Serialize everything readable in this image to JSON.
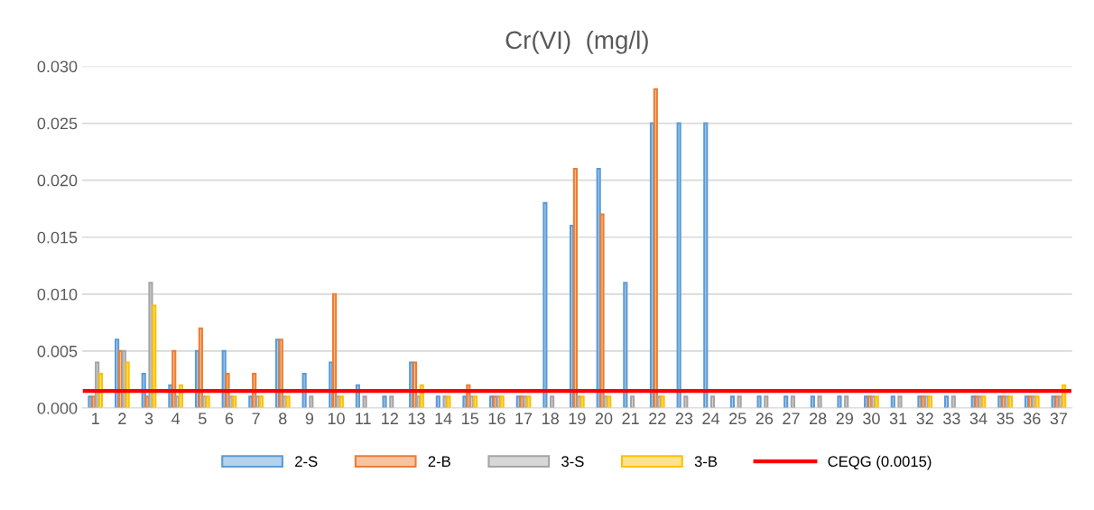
{
  "chart_data": {
    "type": "bar",
    "title": "Cr(VI)  (mg/l)",
    "categories": [
      "1",
      "2",
      "3",
      "4",
      "5",
      "6",
      "7",
      "8",
      "9",
      "10",
      "11",
      "12",
      "13",
      "14",
      "15",
      "16",
      "17",
      "18",
      "19",
      "20",
      "21",
      "22",
      "23",
      "24",
      "25",
      "26",
      "27",
      "28",
      "29",
      "30",
      "31",
      "32",
      "33",
      "34",
      "35",
      "36",
      "37"
    ],
    "series": [
      {
        "name": "2-S",
        "color": "#5b9bd5",
        "values": [
          0.001,
          0.006,
          0.003,
          0.002,
          0.005,
          0.005,
          0.001,
          0.006,
          0.003,
          0.004,
          0.002,
          0.001,
          0.004,
          0.001,
          0.001,
          0.001,
          0.001,
          0.018,
          0.016,
          0.021,
          0.011,
          0.025,
          0.025,
          0.025,
          0.001,
          0.001,
          0.001,
          0.001,
          0.001,
          0.001,
          0.001,
          0.001,
          0.001,
          0.001,
          0.001,
          0.001,
          0.001
        ]
      },
      {
        "name": "2-B",
        "color": "#ed7d31",
        "values": [
          0.001,
          0.005,
          0.001,
          0.005,
          0.007,
          0.003,
          0.003,
          0.006,
          null,
          0.01,
          null,
          null,
          0.004,
          null,
          0.002,
          0.001,
          0.001,
          null,
          0.021,
          0.017,
          null,
          0.028,
          null,
          null,
          null,
          null,
          null,
          null,
          null,
          0.001,
          null,
          0.001,
          null,
          0.001,
          0.001,
          0.001,
          0.001
        ]
      },
      {
        "name": "3-S",
        "color": "#a5a5a5",
        "values": [
          0.004,
          0.005,
          0.011,
          0.001,
          0.001,
          0.001,
          0.001,
          0.001,
          0.001,
          0.001,
          0.001,
          0.001,
          0.001,
          0.001,
          0.001,
          0.001,
          0.001,
          0.001,
          0.001,
          0.001,
          0.001,
          0.001,
          0.001,
          0.001,
          0.001,
          0.001,
          0.001,
          0.001,
          0.001,
          0.001,
          0.001,
          0.001,
          0.001,
          0.001,
          0.001,
          0.001,
          0.001
        ]
      },
      {
        "name": "3-B",
        "color": "#ffc000",
        "values": [
          0.003,
          0.004,
          0.009,
          0.002,
          0.001,
          0.001,
          0.001,
          0.001,
          null,
          0.001,
          null,
          null,
          0.002,
          0.001,
          0.001,
          0.001,
          0.001,
          null,
          0.001,
          0.001,
          null,
          0.001,
          null,
          null,
          null,
          null,
          null,
          null,
          null,
          0.001,
          null,
          0.001,
          null,
          0.001,
          0.001,
          0.001,
          0.002
        ]
      }
    ],
    "ref_lines": [
      {
        "axis": "y",
        "value": 0.0015,
        "label": "CEQG (0.0015)",
        "color": "#ff0000"
      }
    ],
    "ylim": [
      0,
      0.03
    ],
    "yticks": [
      {
        "value": 0,
        "label": "0.000"
      },
      {
        "value": 0.005,
        "label": "0.005"
      },
      {
        "value": 0.01,
        "label": "0.010"
      },
      {
        "value": 0.015,
        "label": "0.015"
      },
      {
        "value": 0.02,
        "label": "0.020"
      },
      {
        "value": 0.025,
        "label": "0.025"
      },
      {
        "value": 0.03,
        "label": "0.030"
      }
    ],
    "grid": "y",
    "legend": "bottom"
  }
}
